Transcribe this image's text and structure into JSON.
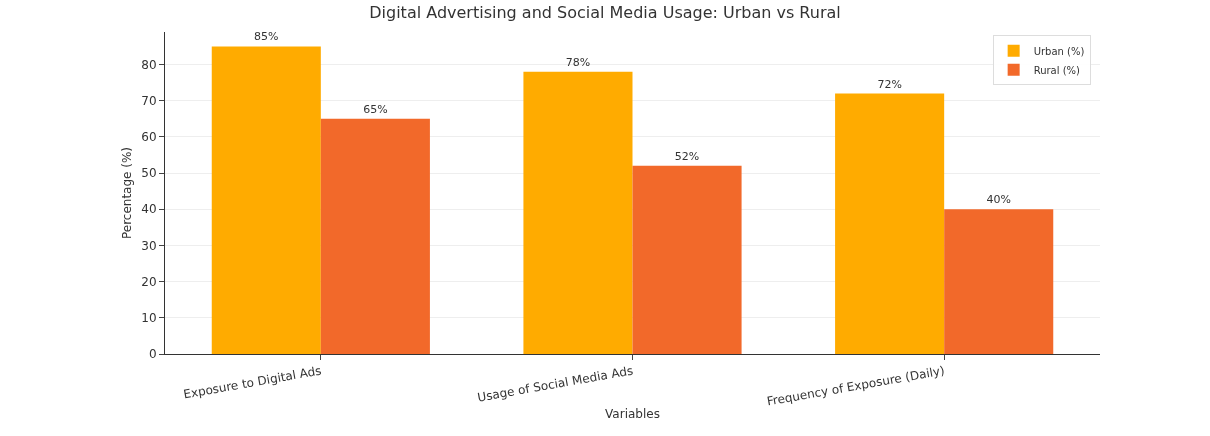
{
  "chart_data": {
    "type": "bar",
    "title": "Digital Advertising and Social Media Usage: Urban vs Rural",
    "xlabel": "Variables",
    "ylabel": "Percentage (%)",
    "categories": [
      "Exposure to Digital Ads",
      "Usage of Social Media Ads",
      "Frequency of Exposure (Daily)"
    ],
    "series": [
      {
        "name": "Urban (%)",
        "color": "#ffab00",
        "values": [
          85,
          78,
          72
        ],
        "value_labels": [
          "85%",
          "78%",
          "72%"
        ]
      },
      {
        "name": "Rural (%)",
        "color": "#f2692a",
        "values": [
          65,
          52,
          40
        ],
        "value_labels": [
          "65%",
          "52%",
          "40%"
        ]
      }
    ],
    "ylim": [
      0,
      89
    ],
    "yticks": [
      0,
      10,
      20,
      30,
      40,
      50,
      60,
      70,
      80
    ],
    "grid": "y",
    "legend": "top right"
  }
}
